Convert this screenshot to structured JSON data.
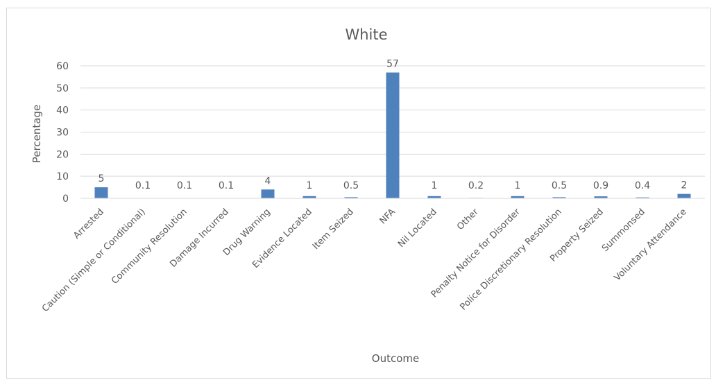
{
  "chart_data": {
    "type": "bar",
    "title": "White",
    "xlabel": "Outcome",
    "ylabel": "Percentage",
    "ylim": [
      0,
      60
    ],
    "yticks": [
      0,
      10,
      20,
      30,
      40,
      50,
      60
    ],
    "grid": true,
    "legend": "none",
    "bar_color": "#4f81bd",
    "categories": [
      "Arrested",
      "Caution (Simple or Conditional)",
      "Community Resolution",
      "Damage Incurred",
      "Drug Warning",
      "Evidence Located",
      "Item Seized",
      "NFA",
      "Nil Located",
      "Other",
      "Penalty Notice for Disorder",
      "Police Discretionary Resolution",
      "Property Seized",
      "Summonsed",
      "Voluntary Attendance"
    ],
    "values": [
      5,
      0.1,
      0.1,
      0.1,
      4,
      1,
      0.5,
      57,
      1,
      0.2,
      1,
      0.5,
      0.9,
      0.4,
      2
    ],
    "data_labels": [
      "5",
      "0.1",
      "0.1",
      "0.1",
      "4",
      "1",
      "0.5",
      "57",
      "1",
      "0.2",
      "1",
      "0.5",
      "0.9",
      "0.4",
      "2"
    ]
  }
}
